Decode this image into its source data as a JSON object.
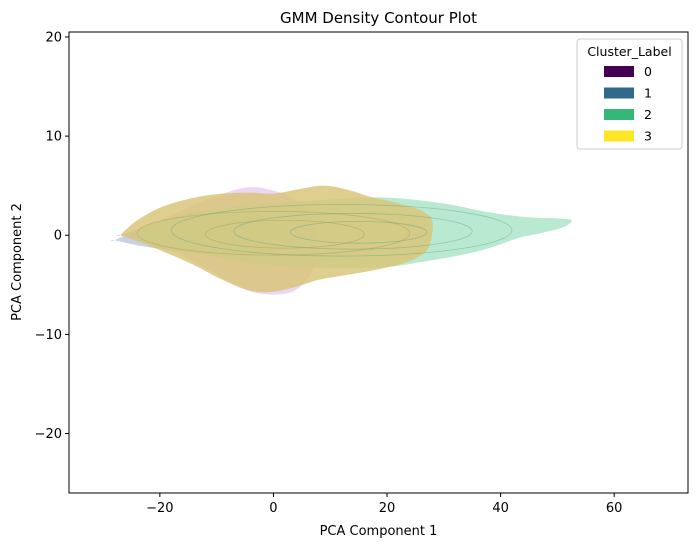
{
  "chart_data": {
    "type": "kde-contour",
    "title": "GMM Density Contour Plot",
    "xlabel": "PCA Component 1",
    "ylabel": "PCA Component 2",
    "xlim": [
      -36,
      73
    ],
    "ylim": [
      -26,
      20.5
    ],
    "xticks": [
      -20,
      0,
      20,
      40,
      60
    ],
    "yticks": [
      -20,
      -10,
      0,
      10,
      20
    ],
    "xtick_labels": [
      "−20",
      "0",
      "20",
      "40",
      "60"
    ],
    "ytick_labels": [
      "−20",
      "−10",
      "0",
      "10",
      "20"
    ],
    "grid": false,
    "legend": {
      "title": "Cluster_Label",
      "placement": "top-right",
      "entries": [
        {
          "label": "0",
          "color": "#440154"
        },
        {
          "label": "1",
          "color": "#31688e"
        },
        {
          "label": "2",
          "color": "#35b779"
        },
        {
          "label": "3",
          "color": "#fde725"
        }
      ]
    },
    "series": [
      {
        "label": "0",
        "color": "#440154",
        "fill": "#e6cdf4",
        "outline": [
          [
            -27,
            0
          ],
          [
            -20,
            1.5
          ],
          [
            -12,
            3.5
          ],
          [
            -5,
            4.8
          ],
          [
            0,
            4.5
          ],
          [
            4,
            3.5
          ],
          [
            7,
            1.5
          ],
          [
            8,
            -1
          ],
          [
            7,
            -3.5
          ],
          [
            4,
            -5.5
          ],
          [
            0,
            -6
          ],
          [
            -5,
            -5.5
          ],
          [
            -10,
            -4
          ],
          [
            -16,
            -2
          ],
          [
            -22,
            -0.8
          ],
          [
            -27,
            0
          ]
        ]
      },
      {
        "label": "1",
        "color": "#31688e",
        "fill": "#b9c9e1",
        "outline": [
          [
            -28,
            -0.5
          ],
          [
            -22,
            1
          ],
          [
            -15,
            2.2
          ],
          [
            -8,
            2.6
          ],
          [
            -2,
            2
          ],
          [
            2,
            0.5
          ],
          [
            2,
            -1
          ],
          [
            -3,
            -2
          ],
          [
            -10,
            -2
          ],
          [
            -17,
            -1.6
          ],
          [
            -24,
            -1
          ],
          [
            -28,
            -0.5
          ]
        ]
      },
      {
        "label": "2",
        "color": "#35b779",
        "fill": "#abe4c8",
        "outline": [
          [
            -25,
            0.3
          ],
          [
            -18,
            1.5
          ],
          [
            -8,
            2.8
          ],
          [
            0,
            3.2
          ],
          [
            10,
            3.6
          ],
          [
            20,
            3.8
          ],
          [
            30,
            3.2
          ],
          [
            38,
            2.3
          ],
          [
            45,
            1.8
          ],
          [
            50,
            1.7
          ],
          [
            52.5,
            1.5
          ],
          [
            51,
            0.8
          ],
          [
            47,
            0.2
          ],
          [
            43,
            -0.3
          ],
          [
            38,
            -1.3
          ],
          [
            33,
            -2
          ],
          [
            26,
            -2.7
          ],
          [
            20,
            -3.2
          ],
          [
            12,
            -3.3
          ],
          [
            4,
            -3.2
          ],
          [
            -4,
            -2.8
          ],
          [
            -12,
            -2
          ],
          [
            -20,
            -1
          ],
          [
            -25,
            0.3
          ]
        ]
      },
      {
        "label": "3",
        "color": "#fde725",
        "fill": "#d8c575",
        "outline": [
          [
            -27,
            0
          ],
          [
            -24,
            1.5
          ],
          [
            -19,
            3
          ],
          [
            -12,
            4
          ],
          [
            -5,
            4.3
          ],
          [
            0,
            4.2
          ],
          [
            5,
            4.7
          ],
          [
            9,
            5
          ],
          [
            13,
            4.6
          ],
          [
            17,
            3.9
          ],
          [
            22,
            3.2
          ],
          [
            26,
            2.5
          ],
          [
            28,
            1.4
          ],
          [
            27.5,
            -1
          ],
          [
            26,
            -2
          ],
          [
            23,
            -2.8
          ],
          [
            18,
            -3.5
          ],
          [
            13,
            -4
          ],
          [
            8,
            -4.5
          ],
          [
            4,
            -5.2
          ],
          [
            0,
            -5.7
          ],
          [
            -4,
            -5.6
          ],
          [
            -9,
            -4.5
          ],
          [
            -14,
            -3
          ],
          [
            -20,
            -1.5
          ],
          [
            -24,
            -0.6
          ],
          [
            -27,
            0
          ]
        ]
      }
    ]
  }
}
